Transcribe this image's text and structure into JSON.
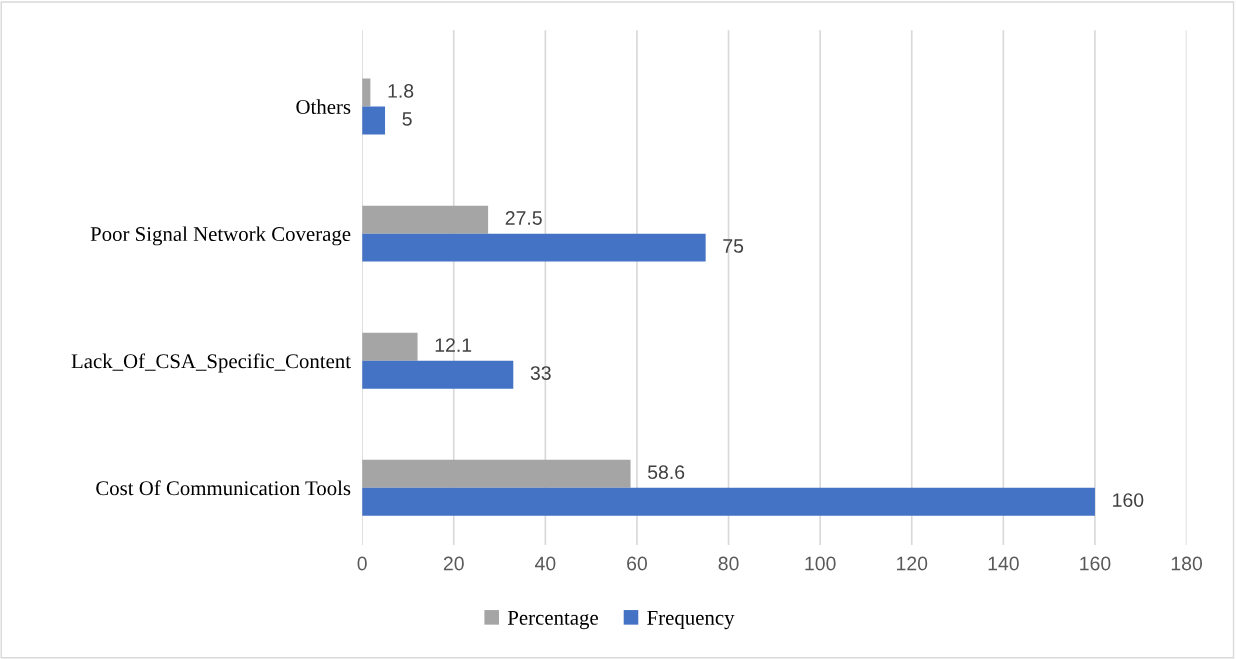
{
  "chart_data": {
    "type": "bar",
    "orientation": "horizontal",
    "categories": [
      "Others",
      "Poor Signal Network Coverage",
      "Lack_Of_CSA_Specific_Content",
      "Cost Of Communication Tools"
    ],
    "series": [
      {
        "name": "Percentage",
        "color": "#a5a5a5",
        "values": [
          1.8,
          27.5,
          12.1,
          58.6
        ]
      },
      {
        "name": "Frequency",
        "color": "#4472c4",
        "values": [
          5,
          75,
          33,
          160
        ]
      }
    ],
    "xlim": [
      0,
      180
    ],
    "xticks": [
      0,
      20,
      40,
      60,
      80,
      100,
      120,
      140,
      160,
      180
    ],
    "grid": "x",
    "legend": "bottom",
    "data_labels": true
  }
}
